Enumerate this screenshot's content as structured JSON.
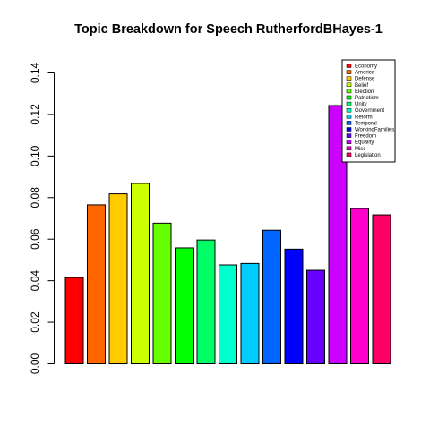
{
  "chart_data": {
    "type": "bar",
    "title": "Topic Breakdown for Speech RutherfordBHayes-1",
    "xlabel": "",
    "ylabel": "",
    "ylim": [
      0,
      0.14
    ],
    "yticks": [
      "0.00",
      "0.02",
      "0.04",
      "0.06",
      "0.08",
      "0.10",
      "0.12",
      "0.14"
    ],
    "categories": [
      "Economy",
      "America",
      "Defense",
      "Belief",
      "Election",
      "Patriotism",
      "Unity",
      "Government",
      "Reform",
      "Temporal",
      "WorkingFamilies",
      "Freedom",
      "Equality",
      "Misc",
      "Legislation"
    ],
    "values": [
      0.0415,
      0.0765,
      0.0818,
      0.0868,
      0.0677,
      0.0558,
      0.0596,
      0.0476,
      0.0483,
      0.0643,
      0.0552,
      0.045,
      0.1243,
      0.0747,
      0.0717
    ],
    "colors": [
      "#FF0000",
      "#FF6600",
      "#FFCC00",
      "#CCFF00",
      "#66FF00",
      "#00FF00",
      "#00FF66",
      "#00FFCC",
      "#00CCFF",
      "#0066FF",
      "#0000FF",
      "#6600FF",
      "#CC00FF",
      "#FF00CC",
      "#FF0066"
    ],
    "legend_position": "top-right",
    "grid": false
  }
}
